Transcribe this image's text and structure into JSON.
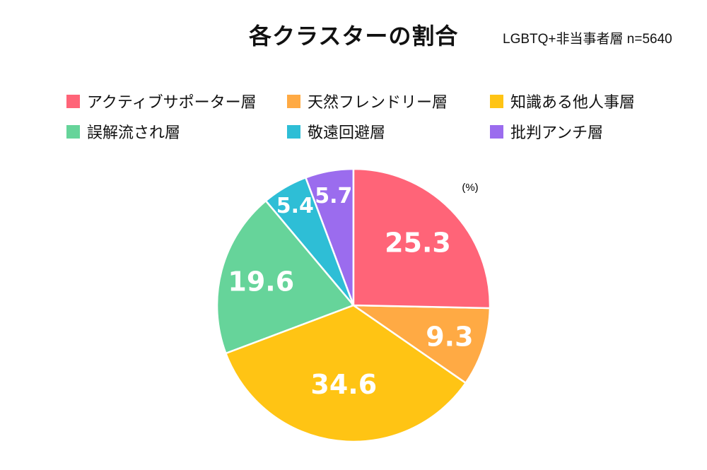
{
  "chart_data": {
    "type": "pie",
    "title": "各クラスターの割合",
    "subtitle": "LGBTQ+非当事者層 n=5640",
    "unit_label": "(%)",
    "legend_position": "top",
    "start": "top, clockwise",
    "slices": [
      {
        "label": "アクティブサポーター層",
        "value": 25.3,
        "color": "#FF6478"
      },
      {
        "label": "天然フレンドリー層",
        "value": 9.3,
        "color": "#FFAA44"
      },
      {
        "label": "知識ある他人事層",
        "value": 34.6,
        "color": "#FFC414"
      },
      {
        "label": "誤解流され層",
        "value": 19.6,
        "color": "#66D49A"
      },
      {
        "label": "敬遠回避層",
        "value": 5.4,
        "color": "#2EBED6"
      },
      {
        "label": "批判アンチ層",
        "value": 5.7,
        "color": "#9B6CEE"
      }
    ]
  }
}
